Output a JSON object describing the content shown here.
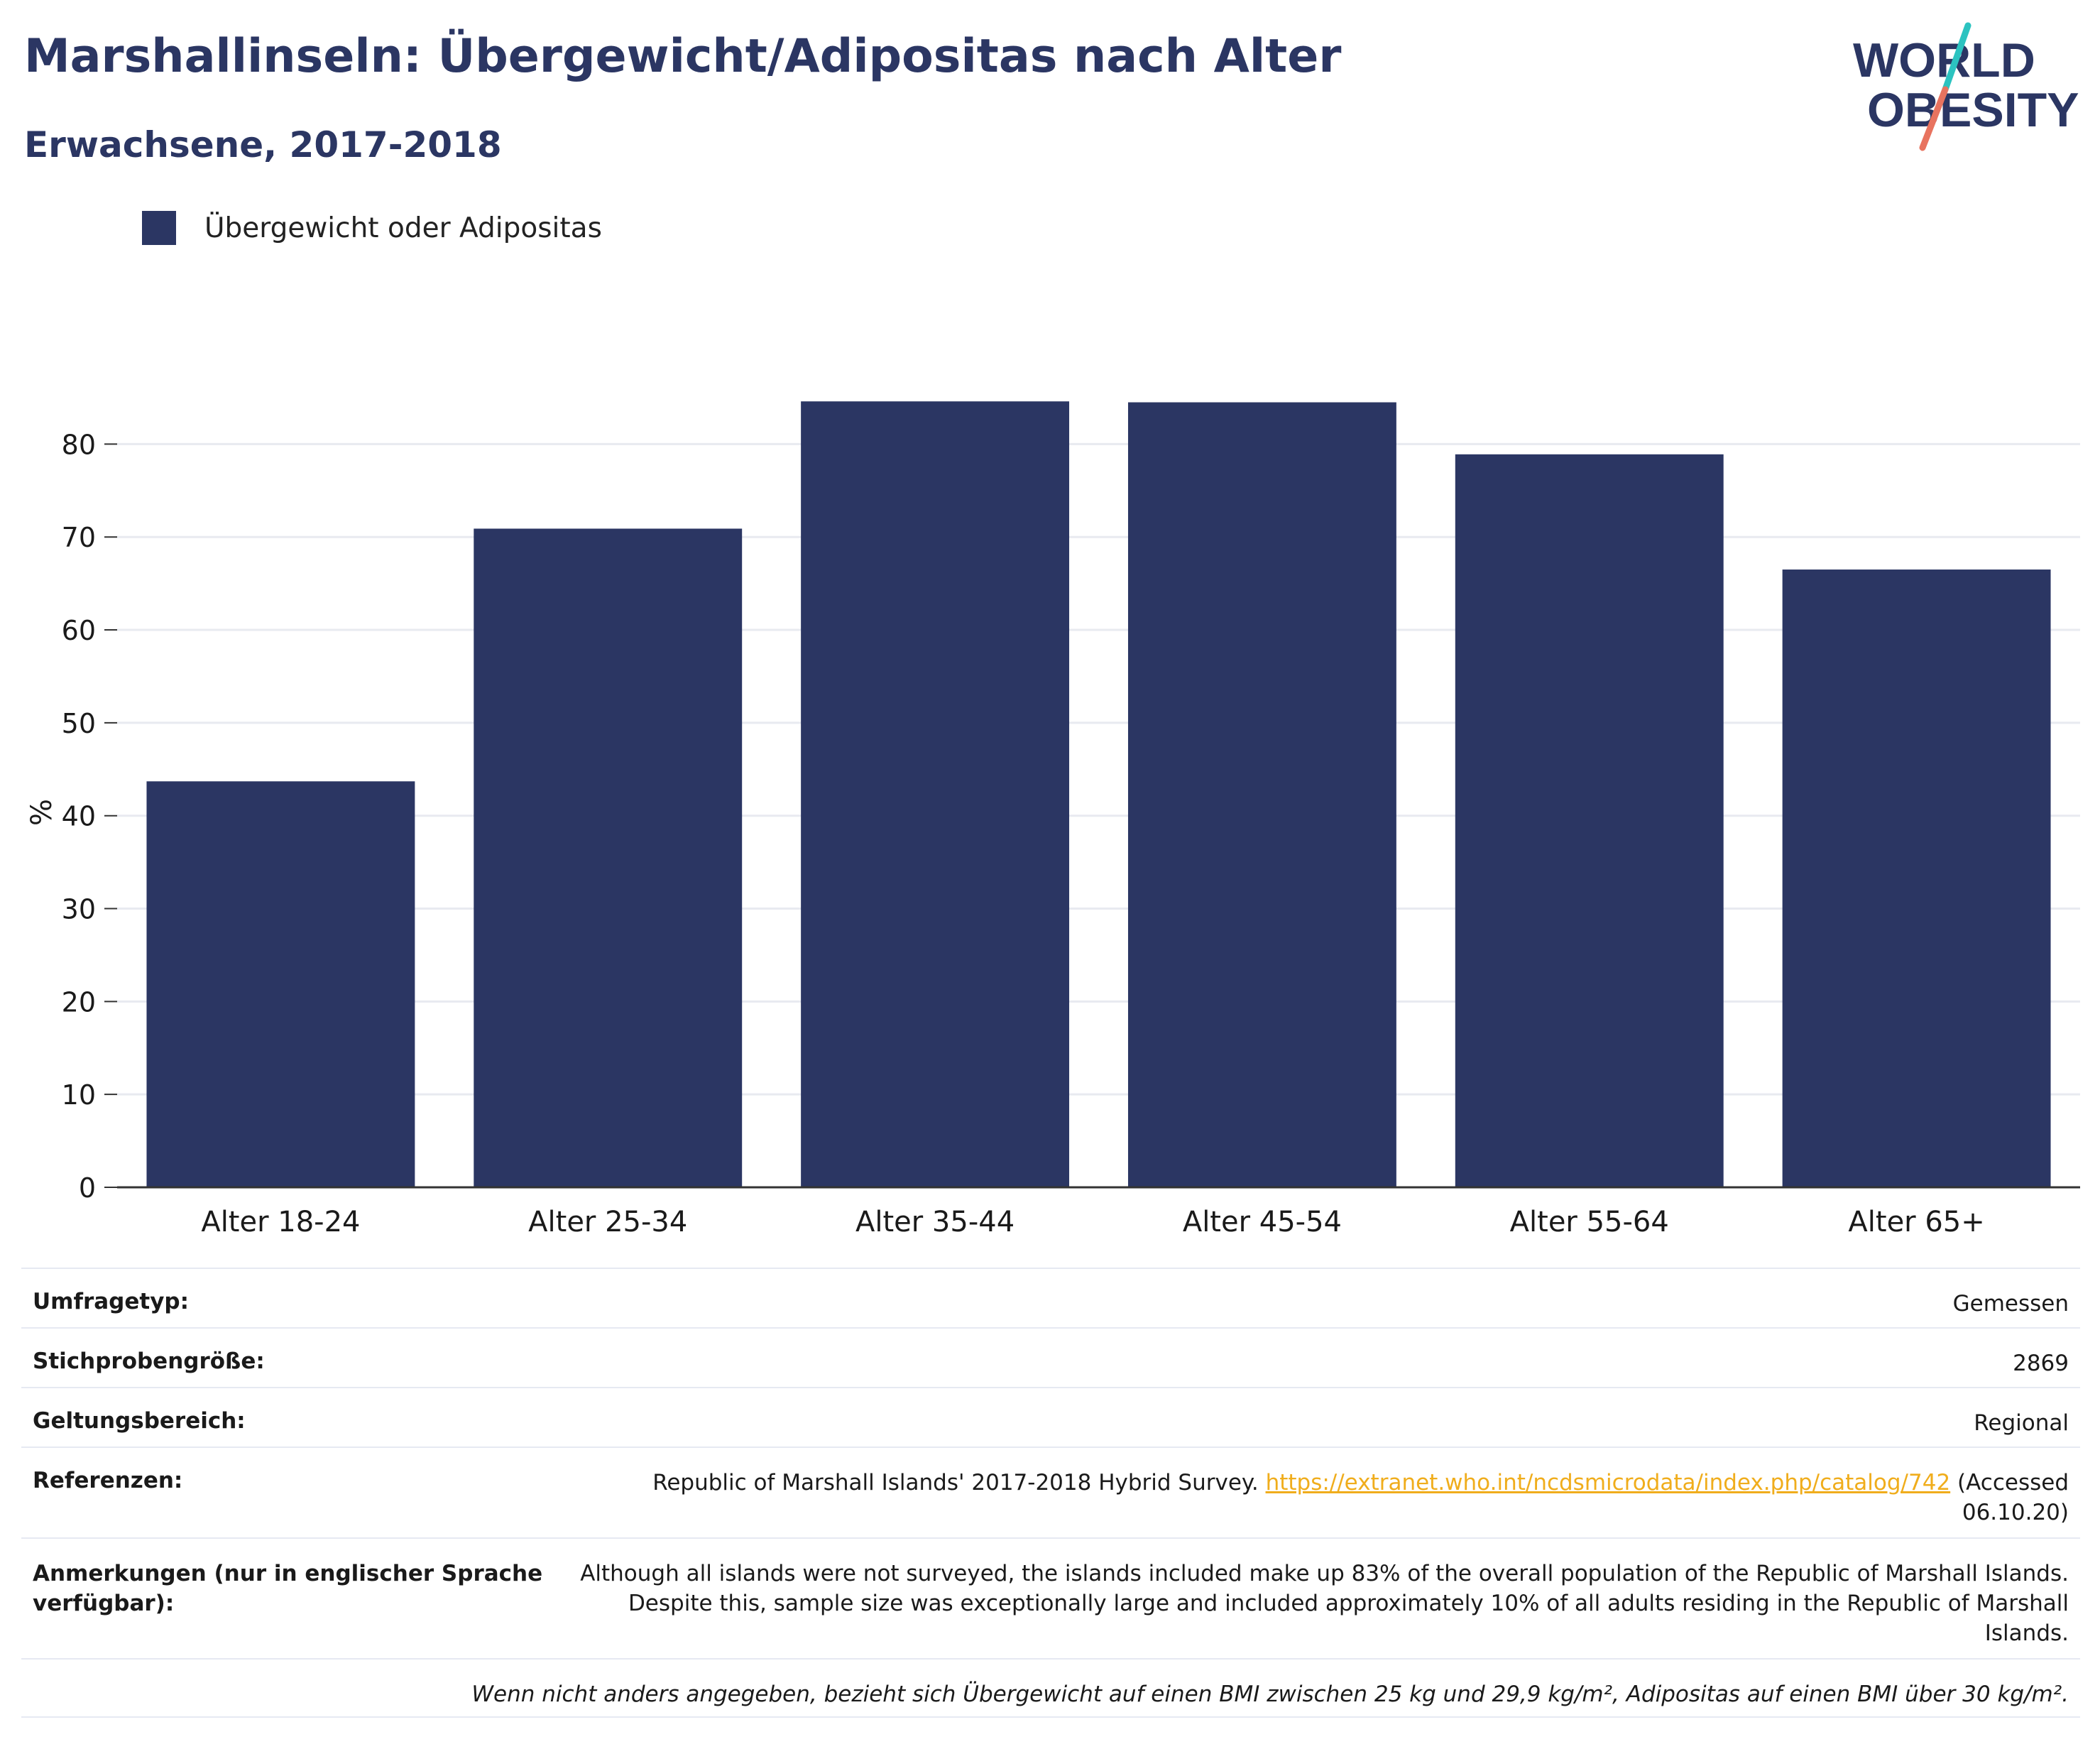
{
  "header": {
    "title": "Marshallinseln: Übergewicht/Adipositas nach Alter",
    "subtitle": "Erwachsene, 2017-2018"
  },
  "logo": {
    "line1": "WORLD",
    "line2": "OBESITY",
    "accent_teal": "#2cc3c0",
    "accent_coral": "#e8735f",
    "text_color": "#2b3663"
  },
  "colors": {
    "bar": "#2b3663",
    "grid": "#e8eaf0",
    "axis": "#333333"
  },
  "chart_data": {
    "type": "bar",
    "categories": [
      "Alter 18-24",
      "Alter 25-34",
      "Alter 35-44",
      "Alter 45-54",
      "Alter 55-64",
      "Alter 65+"
    ],
    "series": [
      {
        "name": "Übergewicht oder Adipositas",
        "values": [
          43.7,
          70.9,
          84.6,
          84.5,
          78.9,
          66.5
        ]
      }
    ],
    "ylabel": "%",
    "ylim": [
      0,
      85
    ],
    "yticks": [
      0,
      10,
      20,
      30,
      40,
      50,
      60,
      70,
      80
    ],
    "grid": true,
    "legend_position": "top-left"
  },
  "info": {
    "survey_type_label": "Umfragetyp:",
    "survey_type_value": "Gemessen",
    "sample_size_label": "Stichprobengröße:",
    "sample_size_value": "2869",
    "scope_label": "Geltungsbereich:",
    "scope_value": "Regional",
    "references_label": "Referenzen:",
    "references_text": "Republic of Marshall Islands' 2017-2018 Hybrid Survey.",
    "references_link": "https://extranet.who.int/ncdsmicrodata/index.php/catalog/742",
    "references_suffix": "(Accessed 06.10.20)",
    "notes_label": "Anmerkungen (nur in englischer Sprache verfügbar):",
    "notes_value": "Although all islands were not surveyed, the islands included make up 83% of the overall population of the Republic of Marshall Islands. Despite this, sample size was exceptionally large and included approximately 10% of all adults residing in the Republic of Marshall Islands.",
    "footnote": "Wenn nicht anders angegeben, bezieht sich Übergewicht auf einen BMI zwischen 25 kg und 29,9 kg/m², Adipositas auf einen BMI über 30 kg/m²."
  }
}
